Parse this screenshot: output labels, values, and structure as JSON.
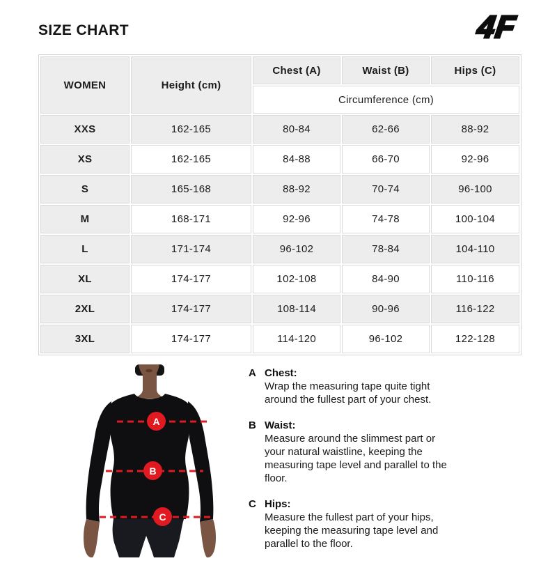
{
  "page": {
    "title": "SIZE CHART",
    "brand": "4F"
  },
  "size_table": {
    "group_header": "WOMEN",
    "height_header": "Height (cm)",
    "measure_headers": [
      "Chest (A)",
      "Waist (B)",
      "Hips (C)"
    ],
    "circumference_header": "Circumference (cm)",
    "columns": [
      "size",
      "height",
      "chest",
      "waist",
      "hips"
    ],
    "rows": [
      {
        "size": "XXS",
        "height": "162-165",
        "chest": "80-84",
        "waist": "62-66",
        "hips": "88-92"
      },
      {
        "size": "XS",
        "height": "162-165",
        "chest": "84-88",
        "waist": "66-70",
        "hips": "92-96"
      },
      {
        "size": "S",
        "height": "165-168",
        "chest": "88-92",
        "waist": "70-74",
        "hips": "96-100"
      },
      {
        "size": "M",
        "height": "168-171",
        "chest": "92-96",
        "waist": "74-78",
        "hips": "100-104"
      },
      {
        "size": "L",
        "height": "171-174",
        "chest": "96-102",
        "waist": "78-84",
        "hips": "104-110"
      },
      {
        "size": "XL",
        "height": "174-177",
        "chest": "102-108",
        "waist": "84-90",
        "hips": "110-116"
      },
      {
        "size": "2XL",
        "height": "174-177",
        "chest": "108-114",
        "waist": "90-96",
        "hips": "116-122"
      },
      {
        "size": "3XL",
        "height": "174-177",
        "chest": "114-120",
        "waist": "96-102",
        "hips": "122-128"
      }
    ]
  },
  "figure": {
    "markers": [
      "A",
      "B",
      "C"
    ],
    "accent_color": "#e11a22"
  },
  "instructions": [
    {
      "letter": "A",
      "title": "Chest:",
      "text": "Wrap the measuring tape quite tight\naround the fullest part of your chest."
    },
    {
      "letter": "B",
      "title": "Waist:",
      "text": "Measure around the slimmest part or\nyour natural waistline, keeping the\nmeasuring tape level and parallel to the\nfloor."
    },
    {
      "letter": "C",
      "title": "Hips:",
      "text": "Measure the fullest part of your hips,\nkeeping the measuring tape level and\nparallel to the floor."
    }
  ]
}
